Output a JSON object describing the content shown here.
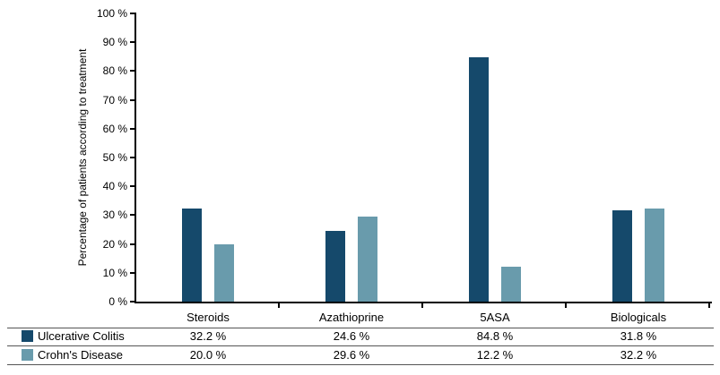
{
  "chart_data": {
    "type": "bar",
    "title": "",
    "xlabel": "",
    "ylabel": "Percentage of patients according to treatment",
    "categories": [
      "Steroids",
      "Azathioprine",
      "5ASA",
      "Biologicals"
    ],
    "series": [
      {
        "name": "Ulcerative Colitis",
        "color": "#15496B",
        "values": [
          32.2,
          24.6,
          84.8,
          31.8
        ]
      },
      {
        "name": "Crohn's Disease",
        "color": "#699BAC",
        "values": [
          20.0,
          29.6,
          12.2,
          32.2
        ]
      }
    ],
    "ylim": [
      0,
      100
    ],
    "ytick_step": 10,
    "ytick_suffix": " %",
    "grid": false,
    "legend_position": "table-below"
  },
  "table": {
    "rows": [
      {
        "label": "Ulcerative Colitis",
        "values": [
          "32.2 %",
          "24.6 %",
          "84.8 %",
          "31.8 %"
        ]
      },
      {
        "label": "Crohn's Disease",
        "values": [
          "20.0 %",
          "29.6 %",
          "12.2 %",
          "32.2 %"
        ]
      }
    ]
  }
}
